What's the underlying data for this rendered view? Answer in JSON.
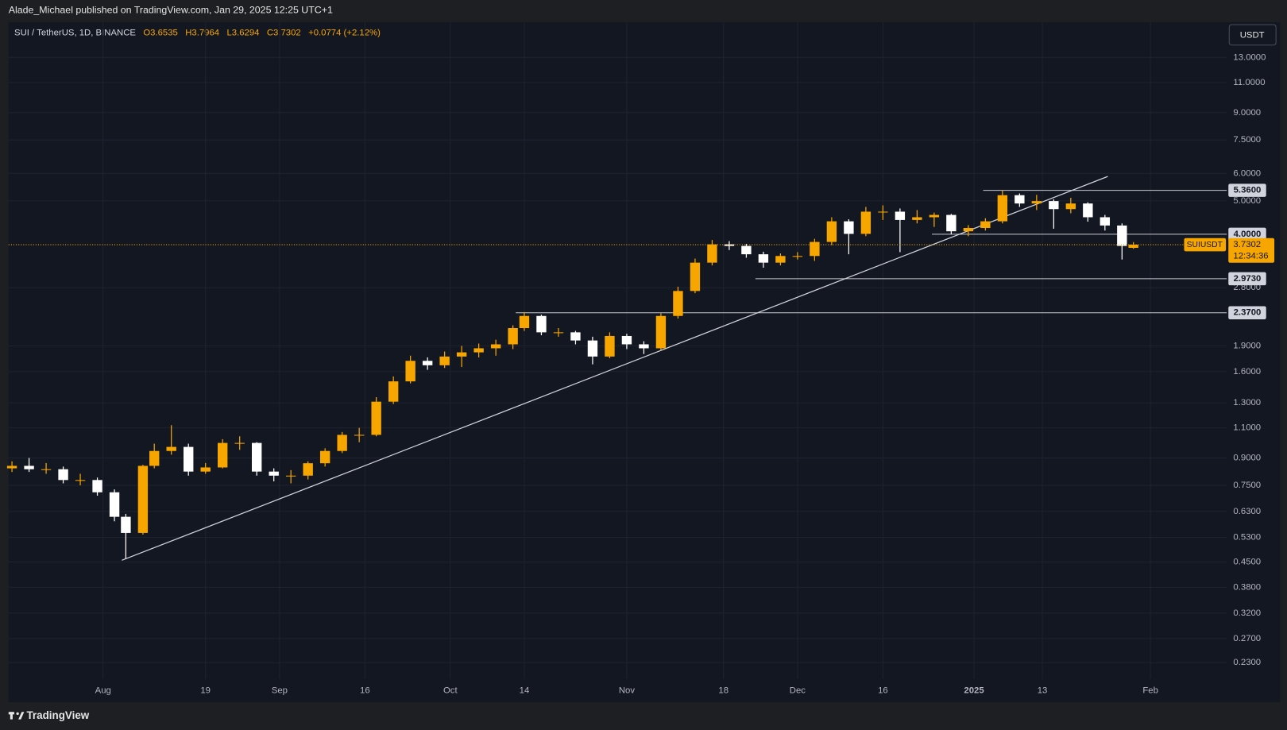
{
  "header": {
    "publisher": "Alade_Michael published on TradingView.com, Jan 29, 2025 12:25 UTC+1"
  },
  "legend": {
    "symbol": "SUI / TetherUS, 1D, BINANCE",
    "ohlc": [
      "O3.6535",
      "H3.7964",
      "L3.6294",
      "C3.7302",
      "+0.0774 (+2.12%)"
    ]
  },
  "currency_button": "USDT",
  "footer": {
    "brand": "TradingView"
  },
  "chart_data": {
    "type": "candlestick",
    "log_scale": true,
    "grid": true,
    "up_color": "#f7a600",
    "down_color": "#ffffff",
    "xlim": [
      -16.6,
      197.4
    ],
    "ylim": [
      0.206,
      16.45
    ],
    "xticks": [
      {
        "value": 0,
        "label": "Aug"
      },
      {
        "value": 18,
        "label": "19"
      },
      {
        "value": 31,
        "label": "Sep"
      },
      {
        "value": 46,
        "label": "16"
      },
      {
        "value": 61,
        "label": "Oct"
      },
      {
        "value": 74,
        "label": "14"
      },
      {
        "value": 92,
        "label": "Nov"
      },
      {
        "value": 109,
        "label": "18"
      },
      {
        "value": 122,
        "label": "Dec"
      },
      {
        "value": 137,
        "label": "16"
      },
      {
        "value": 153,
        "label": "2025"
      },
      {
        "value": 165,
        "label": "13"
      },
      {
        "value": 184,
        "label": "Feb"
      }
    ],
    "yticks": [
      {
        "value": 13,
        "label": "13.0000"
      },
      {
        "value": 11,
        "label": "11.0000"
      },
      {
        "value": 9,
        "label": "9.0000"
      },
      {
        "value": 7.5,
        "label": "7.5000"
      },
      {
        "value": 6,
        "label": "6.0000"
      },
      {
        "value": 5,
        "label": "5.0000"
      },
      {
        "value": 2.8,
        "label": "2.8000"
      },
      {
        "value": 1.9,
        "label": "1.9000"
      },
      {
        "value": 1.6,
        "label": "1.6000"
      },
      {
        "value": 1.3,
        "label": "1.3000"
      },
      {
        "value": 1.1,
        "label": "1.1000"
      },
      {
        "value": 0.9,
        "label": "0.9000"
      },
      {
        "value": 0.75,
        "label": "0.7500"
      },
      {
        "value": 0.63,
        "label": "0.6300"
      },
      {
        "value": 0.53,
        "label": "0.5300"
      },
      {
        "value": 0.45,
        "label": "0.4500"
      },
      {
        "value": 0.38,
        "label": "0.3800"
      },
      {
        "value": 0.32,
        "label": "0.3200"
      },
      {
        "value": 0.27,
        "label": "0.2700"
      },
      {
        "value": 0.23,
        "label": "0.2300"
      }
    ],
    "candles": {
      "x": [
        -16,
        -13,
        -10,
        -7,
        -4,
        -1,
        2,
        4,
        7,
        9,
        12,
        15,
        18,
        21,
        24,
        27,
        30,
        33,
        36,
        39,
        42,
        45,
        48,
        51,
        54,
        57,
        60,
        63,
        66,
        69,
        72,
        74,
        77,
        80,
        83,
        86,
        89,
        92,
        95,
        98,
        101,
        104,
        107,
        110,
        113,
        116,
        119,
        122,
        125,
        128,
        131,
        134,
        137,
        140,
        143,
        146,
        149,
        152,
        155,
        158,
        161,
        164,
        167,
        170,
        173,
        176,
        179,
        181
      ],
      "open": [
        0.84,
        0.854,
        0.835,
        0.835,
        0.777,
        0.777,
        0.716,
        0.608,
        0.546,
        0.854,
        0.943,
        0.969,
        0.822,
        0.845,
        0.995,
        0.995,
        0.822,
        0.8,
        0.8,
        0.869,
        0.943,
        1.05,
        1.05,
        1.31,
        1.5,
        1.72,
        1.67,
        1.77,
        1.82,
        1.87,
        1.92,
        2.14,
        2.32,
        2.08,
        2.08,
        1.97,
        1.77,
        2.03,
        1.92,
        1.87,
        2.32,
        2.74,
        3.31,
        3.74,
        3.7,
        3.5,
        3.31,
        3.46,
        3.46,
        3.8,
        4.36,
        4.01,
        4.65,
        4.65,
        4.4,
        4.48,
        4.55,
        4.08,
        4.17,
        4.36,
        5.19,
        4.91,
        4.99,
        4.73,
        4.91,
        4.48,
        4.24,
        3.6535
      ],
      "high": [
        0.88,
        0.9,
        0.87,
        0.85,
        0.81,
        0.79,
        0.73,
        0.62,
        0.86,
        0.99,
        1.12,
        0.99,
        0.87,
        1.02,
        1.04,
        1.0,
        0.84,
        0.83,
        0.88,
        0.96,
        1.07,
        1.1,
        1.35,
        1.55,
        1.78,
        1.76,
        1.83,
        1.9,
        1.93,
        1.98,
        2.18,
        2.38,
        2.34,
        2.14,
        2.1,
        2.02,
        2.08,
        2.06,
        1.96,
        2.36,
        2.82,
        3.4,
        3.85,
        3.82,
        3.75,
        3.56,
        3.52,
        3.55,
        3.88,
        4.48,
        4.42,
        4.8,
        4.85,
        4.75,
        4.7,
        4.62,
        4.58,
        4.25,
        4.45,
        5.36,
        5.25,
        5.2,
        5.05,
        5.1,
        4.95,
        4.55,
        4.3,
        3.7964
      ],
      "low": [
        0.82,
        0.82,
        0.81,
        0.76,
        0.75,
        0.7,
        0.59,
        0.46,
        0.54,
        0.84,
        0.92,
        0.8,
        0.81,
        0.84,
        0.95,
        0.8,
        0.77,
        0.76,
        0.78,
        0.85,
        0.93,
        1.0,
        1.04,
        1.29,
        1.48,
        1.62,
        1.64,
        1.65,
        1.76,
        1.78,
        1.86,
        2.1,
        2.04,
        2.02,
        1.92,
        1.68,
        1.75,
        1.86,
        1.8,
        1.85,
        2.28,
        2.7,
        3.25,
        3.6,
        3.42,
        3.2,
        3.25,
        3.38,
        3.35,
        3.72,
        3.5,
        3.95,
        4.4,
        3.55,
        4.3,
        4.2,
        4.0,
        3.95,
        4.1,
        4.3,
        4.8,
        4.7,
        4.15,
        4.6,
        4.35,
        4.1,
        3.38,
        3.6294
      ],
      "close": [
        0.854,
        0.835,
        0.835,
        0.777,
        0.777,
        0.716,
        0.608,
        0.546,
        0.854,
        0.943,
        0.969,
        0.822,
        0.845,
        0.995,
        0.995,
        0.822,
        0.8,
        0.8,
        0.869,
        0.943,
        1.05,
        1.05,
        1.31,
        1.5,
        1.72,
        1.67,
        1.77,
        1.82,
        1.87,
        1.92,
        2.14,
        2.32,
        2.08,
        2.08,
        1.97,
        1.77,
        2.03,
        1.92,
        1.87,
        2.32,
        2.74,
        3.31,
        3.74,
        3.7,
        3.5,
        3.31,
        3.46,
        3.46,
        3.8,
        4.36,
        4.01,
        4.65,
        4.65,
        4.4,
        4.48,
        4.55,
        4.08,
        4.17,
        4.36,
        5.19,
        4.91,
        4.99,
        4.73,
        4.91,
        4.48,
        4.24,
        3.7,
        3.7302
      ]
    },
    "levels": [
      {
        "start": 154.6,
        "value": 5.36,
        "label": "5.3600"
      },
      {
        "start": 145.6,
        "value": 4.0,
        "label": "4.0000"
      },
      {
        "start": 114.6,
        "value": 2.973,
        "label": "2.9730"
      },
      {
        "start": 72.5,
        "value": 2.37,
        "label": "2.3700"
      }
    ],
    "trendline": {
      "x": [
        3.3,
        176.5
      ],
      "y": [
        0.455,
        5.88
      ]
    },
    "price_label": {
      "name": "SUIUSDT",
      "value": "3.7302",
      "countdown": "12:34:36"
    }
  }
}
